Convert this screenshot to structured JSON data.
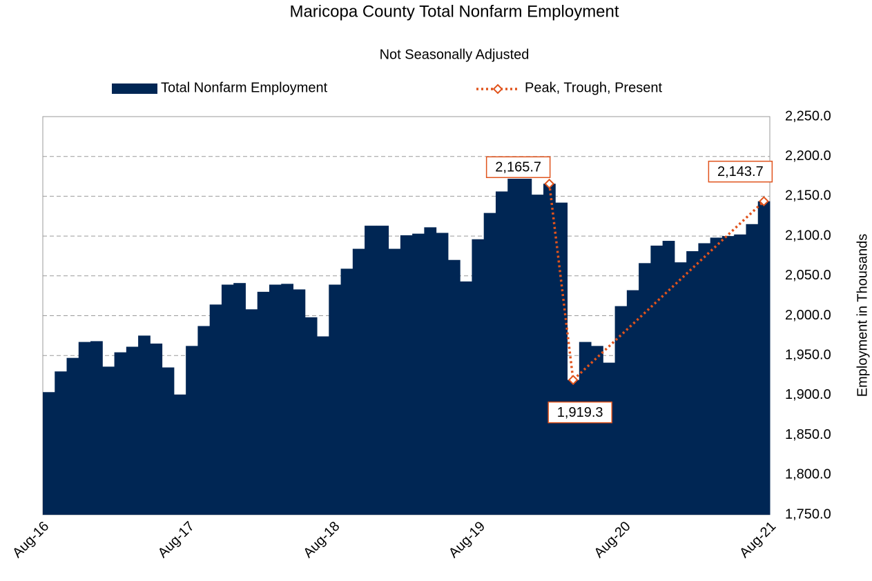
{
  "chart_data": {
    "type": "bar",
    "title": "Maricopa County  Total Nonfarm Employment",
    "subtitle": "Not Seasonally Adjusted",
    "y_axis_label": "Employment in Thousands",
    "categories": [
      "Aug-16",
      null,
      null,
      null,
      null,
      null,
      null,
      null,
      null,
      null,
      null,
      null,
      "Aug-17",
      null,
      null,
      null,
      null,
      null,
      null,
      null,
      null,
      null,
      null,
      null,
      "Aug-18",
      null,
      null,
      null,
      null,
      null,
      null,
      null,
      null,
      null,
      null,
      null,
      "Aug-19",
      null,
      null,
      null,
      null,
      null,
      null,
      null,
      null,
      null,
      null,
      null,
      "Aug-20",
      null,
      null,
      null,
      null,
      null,
      null,
      null,
      null,
      null,
      null,
      null,
      "Aug-21"
    ],
    "series": [
      {
        "name": "Total Nonfarm Employment",
        "type": "bar",
        "color": "#002654",
        "values": [
          1904,
          1930,
          1947,
          1967,
          1968,
          1936,
          1954,
          1961,
          1975,
          1965,
          1935,
          1901,
          1962,
          1987,
          2014,
          2039,
          2041,
          2008,
          2030,
          2039,
          2040,
          2033,
          1998,
          1974,
          2039,
          2059,
          2084,
          2113,
          2113,
          2084,
          2101,
          2103,
          2111,
          2104,
          2070,
          2043,
          2096,
          2129,
          2156,
          2172,
          2172,
          2152,
          2165.7,
          2142,
          1919.3,
          1967,
          1962,
          1941,
          2012,
          2032,
          2066,
          2088,
          2094,
          2067,
          2081,
          2091,
          2098,
          2100,
          2102,
          2115,
          2143.7
        ]
      },
      {
        "name": "Peak, Trough, Present",
        "type": "line",
        "color": "#e0531c",
        "x": [
          42,
          44,
          60
        ],
        "values": [
          2165.7,
          1919.3,
          2143.7
        ],
        "value_labels": [
          "2,165.7",
          "1,919.3",
          "2,143.7"
        ]
      }
    ],
    "ylim": [
      1750,
      2250
    ],
    "yticks": [
      {
        "value": 1750,
        "label": "1,750.0"
      },
      {
        "value": 1800,
        "label": "1,800.0"
      },
      {
        "value": 1850,
        "label": "1,850.0"
      },
      {
        "value": 1900,
        "label": "1,900.0"
      },
      {
        "value": 1950,
        "label": "1,950.0"
      },
      {
        "value": 2000,
        "label": "2,000.0"
      },
      {
        "value": 2050,
        "label": "2,050.0"
      },
      {
        "value": 2100,
        "label": "2,100.0"
      },
      {
        "value": 2150,
        "label": "2,150.0"
      },
      {
        "value": 2200,
        "label": "2,200.0"
      },
      {
        "value": 2250,
        "label": "2,250.0"
      }
    ],
    "grid": true
  }
}
